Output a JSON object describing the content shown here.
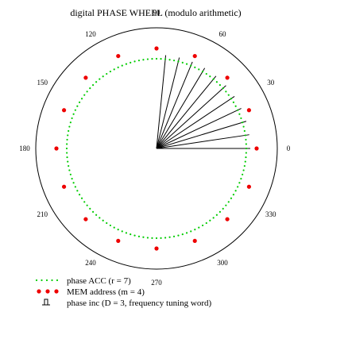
{
  "chart_data": {
    "type": "polar",
    "title": "digital PHASE WHEEL (modulo arithmetic)",
    "angle_ticks": [
      {
        "deg": 90,
        "label": "90"
      },
      {
        "deg": 60,
        "label": "60"
      },
      {
        "deg": 30,
        "label": "30"
      },
      {
        "deg": 0,
        "label": "0"
      },
      {
        "deg": 330,
        "label": "330"
      },
      {
        "deg": 300,
        "label": "300"
      },
      {
        "deg": 270,
        "label": "270"
      },
      {
        "deg": 240,
        "label": "240"
      },
      {
        "deg": 210,
        "label": "210"
      },
      {
        "deg": 180,
        "label": "180"
      },
      {
        "deg": 150,
        "label": "150"
      },
      {
        "deg": 120,
        "label": "120"
      }
    ],
    "series": [
      {
        "name": "phase ACC (r = 7)",
        "kind": "dotted-circle",
        "color": "#00cc00",
        "count": 128
      },
      {
        "name": "MEM address (m = 4)",
        "kind": "points",
        "color": "#ee0000",
        "count": 16
      },
      {
        "name": "phase inc (D = 3, frequency tuning word)",
        "kind": "rays",
        "color": "#000000",
        "count": 11,
        "start_deg": 0,
        "step_deg": 8.4375
      }
    ]
  }
}
